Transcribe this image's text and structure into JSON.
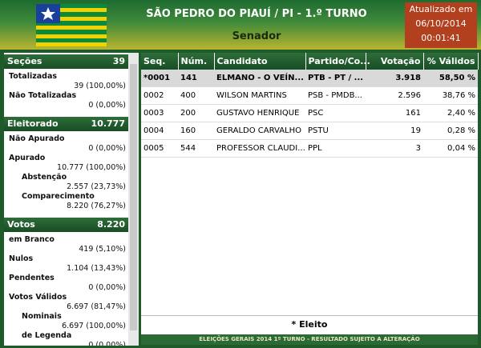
{
  "header": {
    "title": "SÃO PEDRO DO PIAUÍ / PI - 1.º TURNO",
    "subtitle": "Senador",
    "updated": [
      "Atualizado em",
      "06/10/2014",
      "00:01:41"
    ]
  },
  "sidebar": [
    {
      "title": "Seções",
      "value": "39",
      "items": [
        {
          "label": "Totalizadas",
          "value": "39 (100,00%)"
        },
        {
          "label": "Não Totalizadas",
          "value": "0 (0,00%)"
        }
      ]
    },
    {
      "title": "Eleitorado",
      "value": "10.777",
      "items": [
        {
          "label": "Não Apurado",
          "value": "0 (0,00%)"
        },
        {
          "label": "Apurado",
          "value": "10.777 (100,00%)"
        },
        {
          "label": "Abstenção",
          "value": "2.557 (23,73%)"
        },
        {
          "label": "Comparecimento",
          "value": "8.220 (76,27%)"
        }
      ]
    },
    {
      "title": "Votos",
      "value": "8.220",
      "items": [
        {
          "label": "em Branco",
          "value": "419 (5,10%)"
        },
        {
          "label": "Nulos",
          "value": "1.104 (13,43%)"
        },
        {
          "label": "Pendentes",
          "value": "0 (0,00%)"
        },
        {
          "label": "Votos Válidos",
          "value": "6.697 (81,47%)"
        },
        {
          "label": "Nominais",
          "value": "6.697 (100,00%)"
        },
        {
          "label": "de Legenda",
          "value": "0 (0,00%)"
        }
      ]
    }
  ],
  "table": {
    "columns": [
      "Seq.",
      "Núm.",
      "Candidato",
      "Partido/Co...",
      "Votação",
      "% Válidos"
    ],
    "rows": [
      [
        "*0001",
        "141",
        "ELMANO - O VEÍN...",
        "PTB - PT / ...",
        "3.918",
        "58,50 %"
      ],
      [
        "0002",
        "400",
        "WILSON MARTINS",
        "PSB - PMDB...",
        "2.596",
        "38,76 %"
      ],
      [
        "0003",
        "200",
        "GUSTAVO HENRIQUE",
        "PSC",
        "161",
        "2,40 %"
      ],
      [
        "0004",
        "160",
        "GERALDO CARVALHO",
        "PSTU",
        "19",
        "0,28 %"
      ],
      [
        "0005",
        "544",
        "PROFESSOR CLAUDI...",
        "PPL",
        "3",
        "0,04 %"
      ]
    ]
  },
  "footer": {
    "note": "* Eleito",
    "bar": "ELEIÇÕES GERAIS 2014 1º TURNO - RESULTADO SUJEITO A ALTERAÇÃO"
  }
}
